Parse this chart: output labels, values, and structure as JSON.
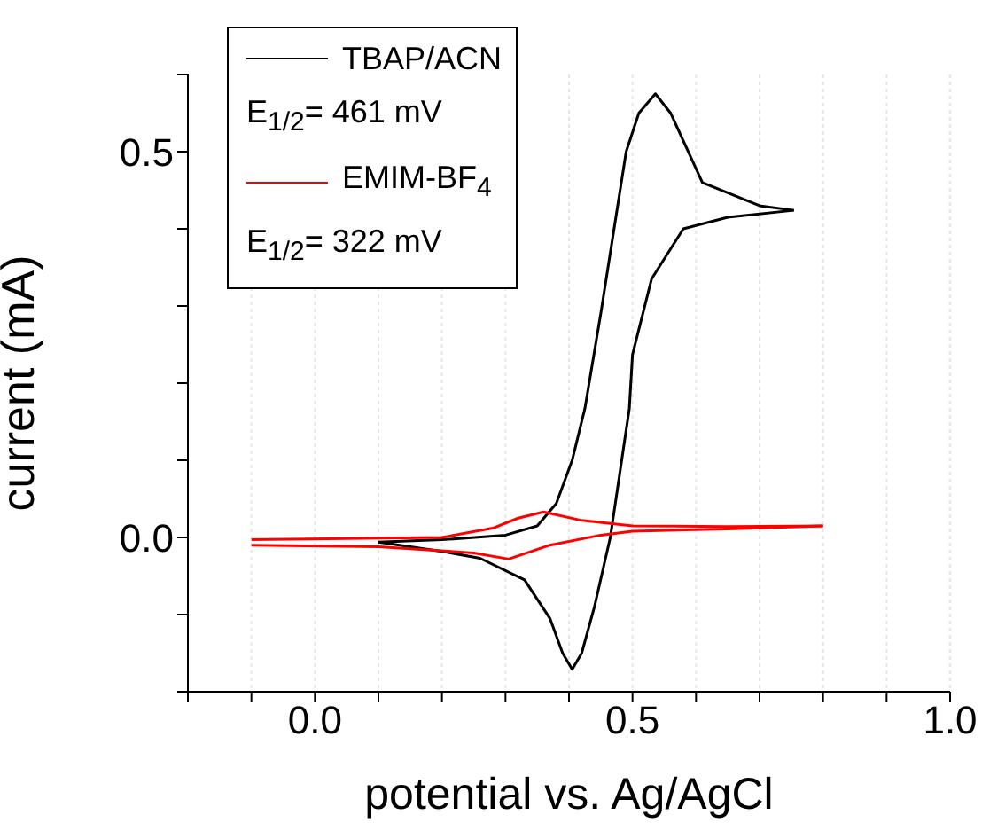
{
  "chart_data": {
    "type": "line",
    "xlabel": "potential vs. Ag/AgCl",
    "ylabel": "current (mA)",
    "xlim": [
      -0.2,
      1.0
    ],
    "ylim": [
      -0.2,
      0.6
    ],
    "xticks": [
      {
        "value": -0.2,
        "label": null
      },
      {
        "value": -0.1,
        "label": null
      },
      {
        "value": 0,
        "label": "0.0"
      },
      {
        "value": 0.1,
        "label": null
      },
      {
        "value": 0.2,
        "label": null
      },
      {
        "value": 0.3,
        "label": null
      },
      {
        "value": 0.4,
        "label": null
      },
      {
        "value": 0.5,
        "label": "0.5"
      },
      {
        "value": 0.6,
        "label": null
      },
      {
        "value": 0.7,
        "label": null
      },
      {
        "value": 0.8,
        "label": null
      },
      {
        "value": 0.9,
        "label": null
      },
      {
        "value": 1.0,
        "label": "1.0"
      }
    ],
    "yticks": [
      {
        "value": -0.2,
        "label": null
      },
      {
        "value": -0.1,
        "label": null
      },
      {
        "value": 0,
        "label": "0.0"
      },
      {
        "value": 0.1,
        "label": null
      },
      {
        "value": 0.2,
        "label": null
      },
      {
        "value": 0.3,
        "label": null
      },
      {
        "value": 0.4,
        "label": null
      },
      {
        "value": 0.5,
        "label": "0.5"
      },
      {
        "value": 0.6,
        "label": null
      }
    ],
    "grid": "x",
    "legend": "top left",
    "marker": "none",
    "line_style": "solid",
    "annotations": [
      "E$_{1/2}$= 461 mV",
      "E$_{1/2}$= 322 mV"
    ],
    "series": [
      {
        "name": "TBAP/ACN",
        "color": "#000000",
        "x": [
          0.1,
          0.2,
          0.3,
          0.35,
          0.38,
          0.405,
          0.425,
          0.45,
          0.49,
          0.51,
          0.536,
          0.56,
          0.61,
          0.7,
          0.754
        ],
        "values": [
          -0.006,
          -0.003,
          0.003,
          0.015,
          0.044,
          0.1,
          0.167,
          0.29,
          0.5,
          0.55,
          0.575,
          0.55,
          0.46,
          0.43,
          0.424
        ]
      },
      {
        "color": "#000000",
        "x": [
          0.754,
          0.65,
          0.58,
          0.53,
          0.5,
          0.495,
          0.465,
          0.44,
          0.42,
          0.405,
          0.39,
          0.37,
          0.33,
          0.26,
          0.2,
          0.1
        ],
        "values": [
          0.424,
          0.415,
          0.4,
          0.335,
          0.237,
          0.167,
          0.0,
          -0.09,
          -0.15,
          -0.171,
          -0.15,
          -0.105,
          -0.055,
          -0.027,
          -0.018,
          -0.006
        ]
      },
      {
        "name": "EMIM-BF$_{4}$",
        "color": "#ff0000",
        "x": [
          -0.1,
          0.2,
          0.28,
          0.32,
          0.36,
          0.42,
          0.5,
          0.65,
          0.8
        ],
        "values": [
          -0.003,
          0.0,
          0.012,
          0.025,
          0.033,
          0.022,
          0.015,
          0.014,
          0.015
        ]
      },
      {
        "color": "#ff0000",
        "x": [
          0.8,
          0.65,
          0.5,
          0.45,
          0.37,
          0.305,
          0.25,
          0.1,
          -0.1
        ],
        "values": [
          0.015,
          0.011,
          0.008,
          0.003,
          -0.01,
          -0.028,
          -0.02,
          -0.012,
          -0.01
        ]
      }
    ]
  }
}
